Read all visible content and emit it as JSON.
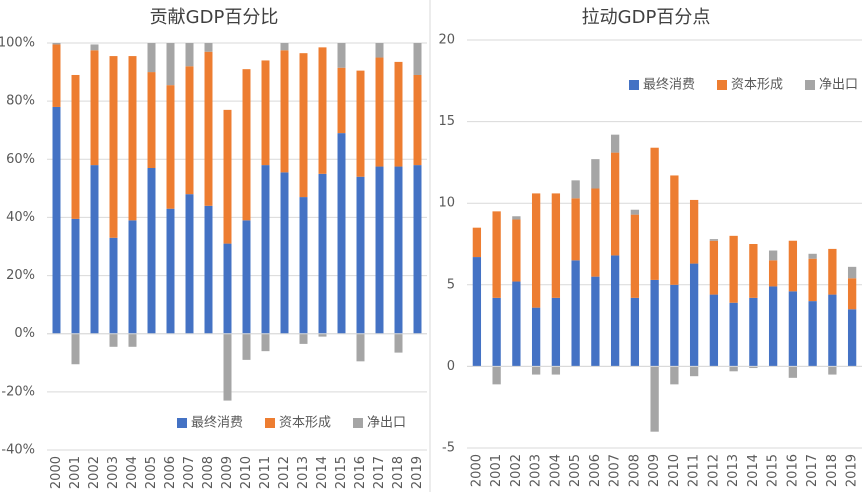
{
  "chart_data": [
    {
      "type": "stacked-bar",
      "title": "贡献GDP百分比",
      "categories": [
        "2000",
        "2001",
        "2002",
        "2003",
        "2004",
        "2005",
        "2006",
        "2007",
        "2008",
        "2009",
        "2010",
        "2011",
        "2012",
        "2013",
        "2014",
        "2015",
        "2016",
        "2017",
        "2018",
        "2019"
      ],
      "series": [
        {
          "name": "最终消费",
          "color": "#4472c4",
          "values": [
            78,
            39.5,
            58,
            33,
            39,
            57,
            43,
            48,
            44,
            31,
            39,
            58,
            55.5,
            47,
            55,
            69,
            54,
            57.5,
            57.5,
            58
          ]
        },
        {
          "name": "资本形成",
          "color": "#ed7d31",
          "values": [
            21.5,
            49.5,
            39.5,
            62.5,
            56.5,
            33,
            42.5,
            44,
            53,
            46,
            52,
            36,
            42,
            49.5,
            43.5,
            22.5,
            36.5,
            37.5,
            36,
            31
          ]
        },
        {
          "name": "净出口",
          "color": "#a5a5a5",
          "values": [
            0.5,
            -10.5,
            2,
            -4.5,
            -4.5,
            10,
            14.5,
            8,
            3,
            -23,
            -9,
            -6,
            2.5,
            -3.5,
            -1,
            8.5,
            -9.5,
            5,
            -6.5,
            11
          ]
        }
      ],
      "ylim": [
        -40,
        100
      ],
      "yticks": [
        {
          "value": -40,
          "label": "-40%"
        },
        {
          "value": -20,
          "label": "-20%"
        },
        {
          "value": 0,
          "label": "0%"
        },
        {
          "value": 20,
          "label": "20%"
        },
        {
          "value": 40,
          "label": "40%"
        },
        {
          "value": 60,
          "label": "60%"
        },
        {
          "value": 80,
          "label": "80%"
        },
        {
          "value": 100,
          "label": "100%"
        }
      ],
      "grid": true,
      "legend": "bottom"
    },
    {
      "type": "stacked-bar",
      "title": "拉动GDP百分点",
      "categories": [
        "2000",
        "2001",
        "2002",
        "2003",
        "2004",
        "2005",
        "2006",
        "2007",
        "2008",
        "2009",
        "2010",
        "2011",
        "2012",
        "2013",
        "2014",
        "2015",
        "2016",
        "2017",
        "2018",
        "2019"
      ],
      "series": [
        {
          "name": "最终消费",
          "color": "#4472c4",
          "values": [
            6.7,
            4.2,
            5.2,
            3.6,
            4.2,
            6.5,
            5.5,
            6.8,
            4.2,
            5.3,
            5.0,
            6.3,
            4.4,
            3.9,
            4.2,
            4.9,
            4.6,
            4.0,
            4.4,
            3.5
          ]
        },
        {
          "name": "资本形成",
          "color": "#ed7d31",
          "values": [
            1.8,
            5.3,
            3.8,
            7.0,
            6.4,
            3.8,
            5.4,
            6.3,
            5.1,
            8.1,
            6.7,
            3.9,
            3.3,
            4.1,
            3.3,
            1.6,
            3.1,
            2.6,
            2.8,
            1.9
          ]
        },
        {
          "name": "净出口",
          "color": "#a5a5a5",
          "values": [
            0,
            -1.1,
            0.2,
            -0.5,
            -0.5,
            1.1,
            1.8,
            1.1,
            0.3,
            -4.0,
            -1.1,
            -0.6,
            0.1,
            -0.3,
            -0.1,
            0.6,
            -0.7,
            0.3,
            -0.5,
            0.7
          ]
        }
      ],
      "ylim": [
        -5,
        20
      ],
      "yticks": [
        -5,
        0,
        5,
        10,
        15,
        20
      ],
      "grid": true,
      "legend": "top"
    }
  ]
}
